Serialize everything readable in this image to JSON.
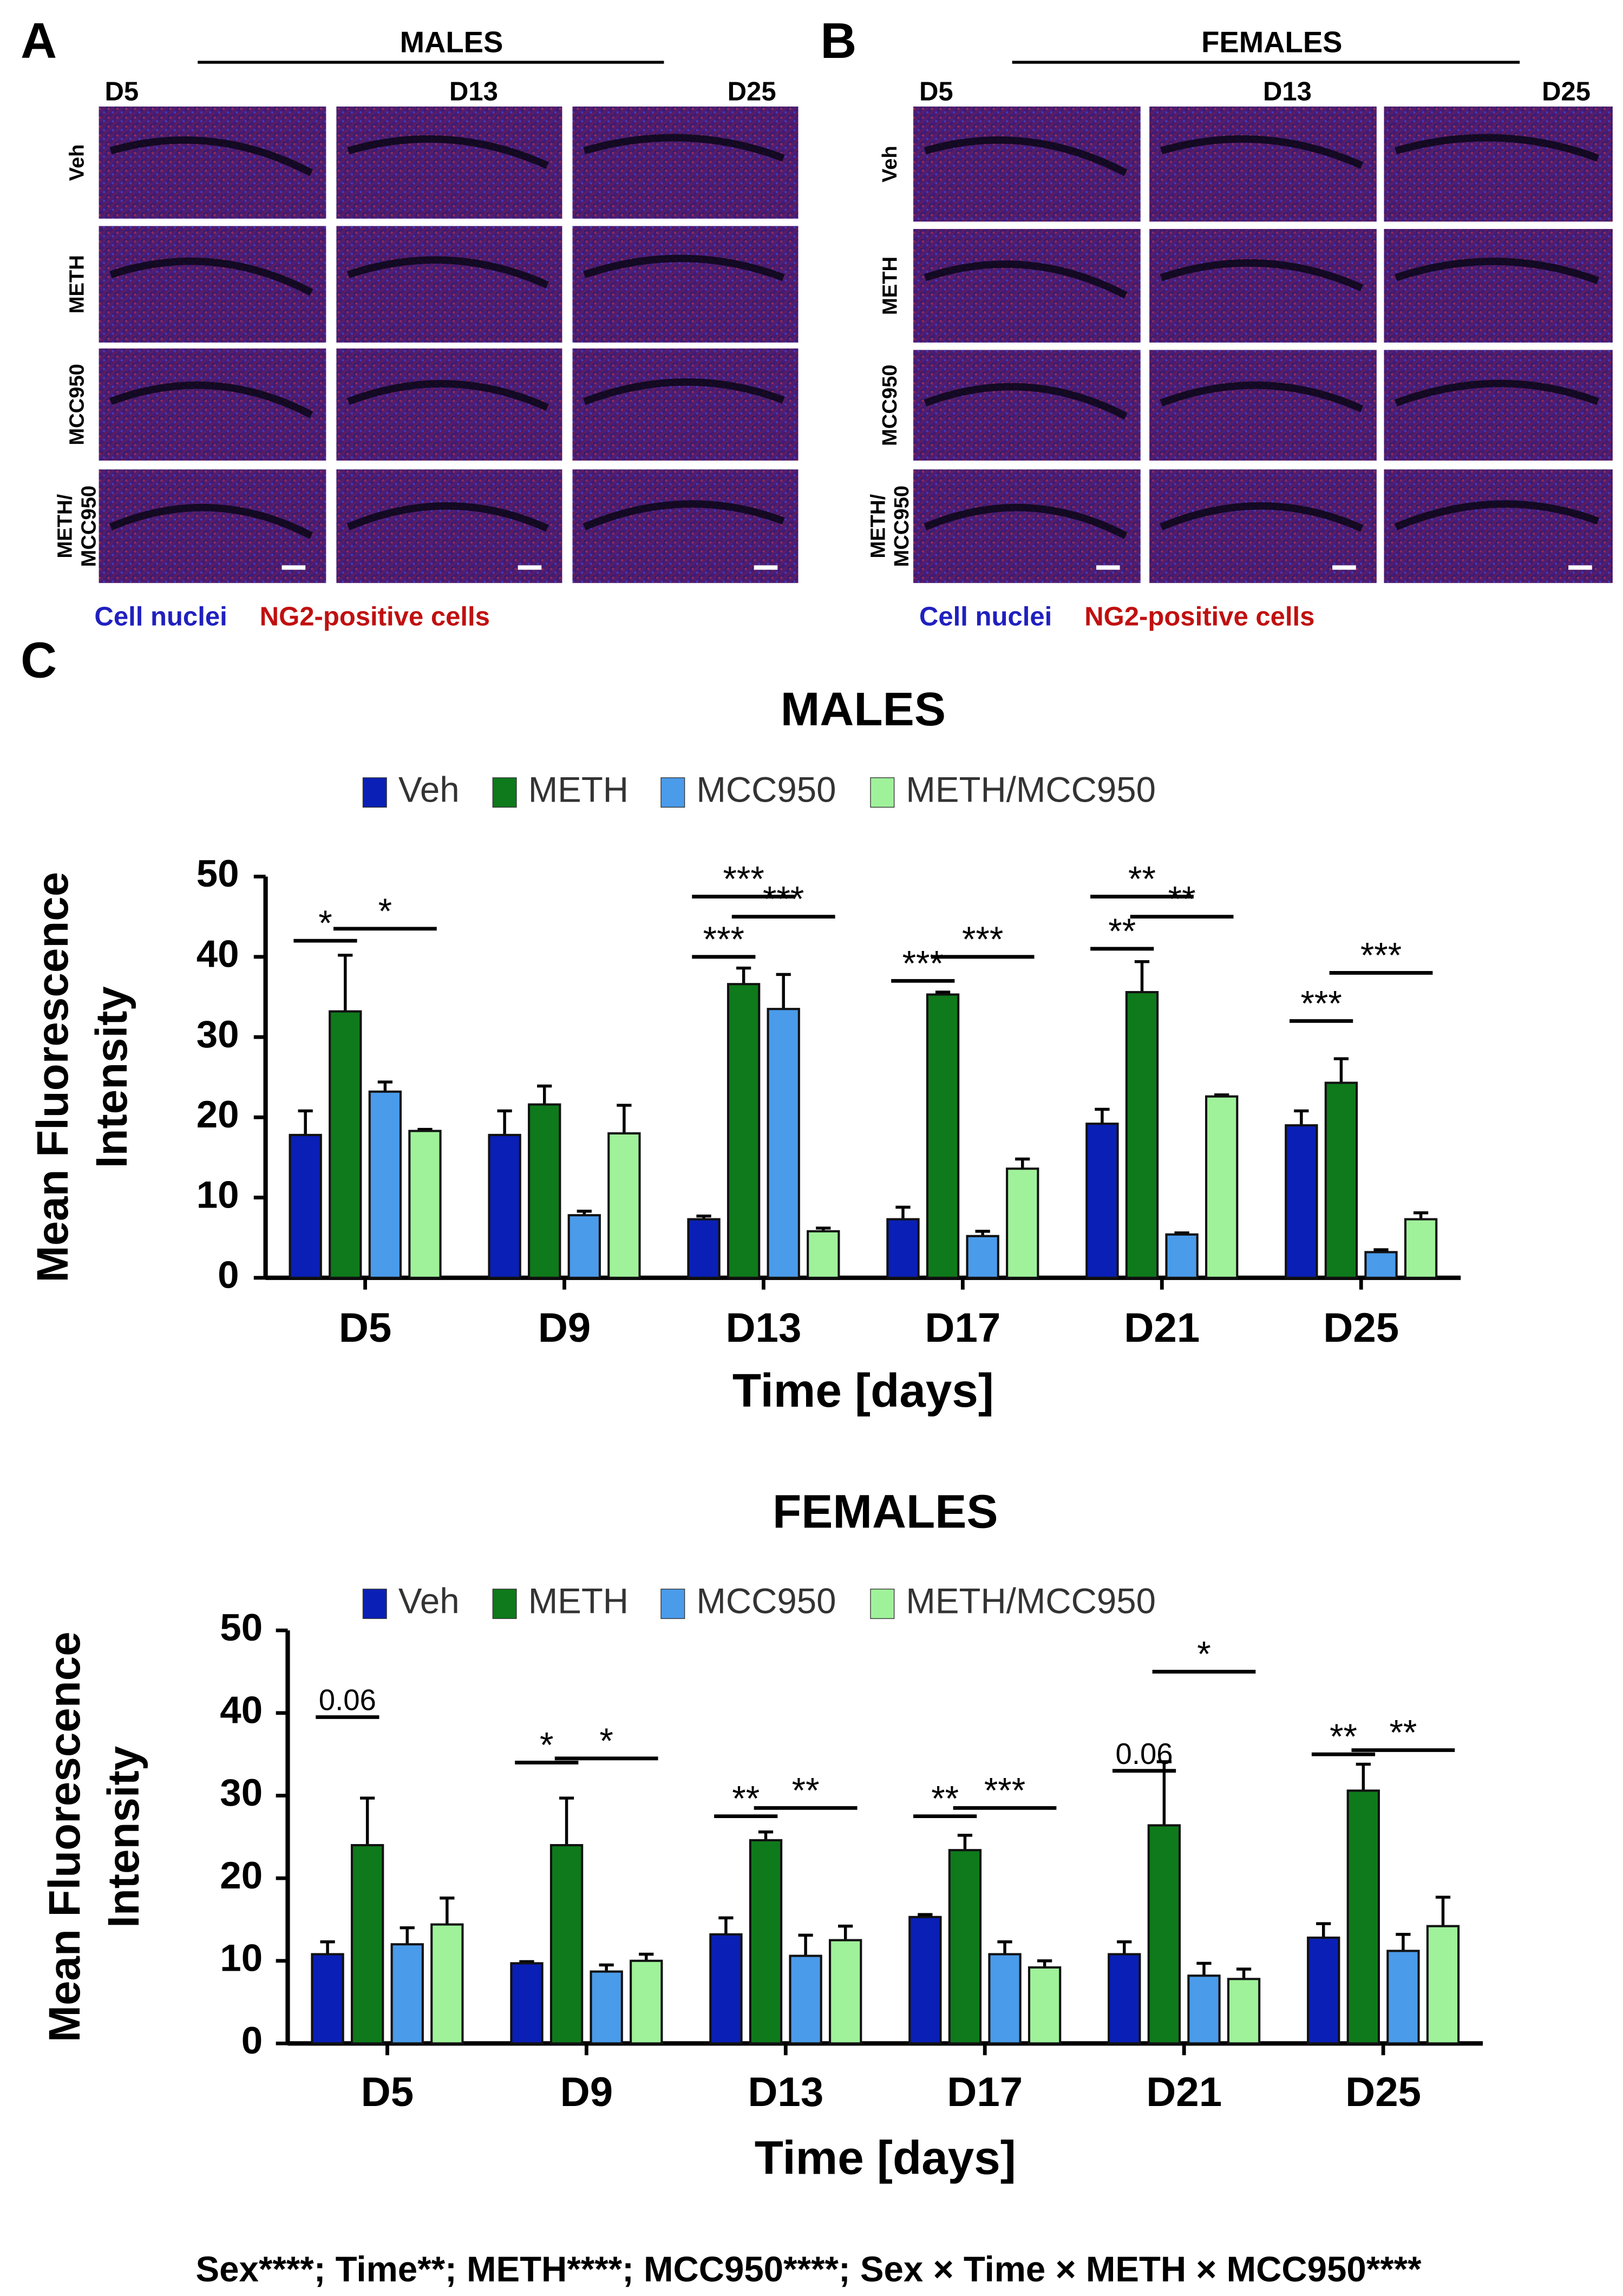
{
  "micrographs": [
    {
      "letter": "A",
      "group": "MALES",
      "columns": [
        "D5",
        "D13",
        "D25"
      ],
      "rows": [
        [
          "Veh"
        ],
        [
          "METH"
        ],
        [
          "MCC950"
        ],
        [
          "METH/",
          "MCC950"
        ]
      ],
      "legend": [
        "Cell nuclei",
        "NG2-positive cells"
      ]
    },
    {
      "letter": "B",
      "group": "FEMALES",
      "columns": [
        "D5",
        "D13",
        "D25"
      ],
      "rows": [
        [
          "Veh"
        ],
        [
          "METH"
        ],
        [
          "MCC950"
        ],
        [
          "METH/",
          "MCC950"
        ]
      ],
      "legend": [
        "Cell nuclei",
        "NG2-positive cells"
      ]
    }
  ],
  "panel_c": "C",
  "chart_data": [
    {
      "type": "bar",
      "title": "MALES",
      "x_label": "Time [days]",
      "y_label": [
        "Mean Fluorescence",
        "Intensity"
      ],
      "categories": [
        "D5",
        "D9",
        "D13",
        "D17",
        "D21",
        "D25"
      ],
      "ylim": [
        0,
        50
      ],
      "yticks": [
        0,
        10,
        20,
        30,
        40,
        50
      ],
      "series": [
        {
          "name": "Veh",
          "color": "#0a1fb5",
          "values": [
            17.8,
            17.8,
            7.3,
            7.3,
            19.2,
            19.0
          ],
          "errors": [
            3.0,
            3.0,
            0.4,
            1.5,
            1.8,
            1.8
          ]
        },
        {
          "name": "METH",
          "color": "#0e7a1b",
          "values": [
            33.2,
            21.6,
            36.6,
            35.3,
            35.6,
            24.3
          ],
          "errors": [
            7.0,
            2.3,
            2.0,
            0.3,
            3.8,
            3.0
          ]
        },
        {
          "name": "MCC950",
          "color": "#4a9bea",
          "values": [
            23.2,
            7.8,
            33.5,
            5.2,
            5.4,
            3.2
          ],
          "errors": [
            1.2,
            0.5,
            4.3,
            0.6,
            0.2,
            0.3
          ]
        },
        {
          "name": "METH/MCC950",
          "color": "#9ff29a",
          "values": [
            18.3,
            18.0,
            5.8,
            13.6,
            22.6,
            7.3
          ],
          "errors": [
            0.2,
            3.5,
            0.4,
            1.2,
            0.2,
            0.8
          ]
        }
      ],
      "annotations": [
        {
          "text": "*",
          "y": 42,
          "category": 0,
          "series": [
            0,
            1
          ]
        },
        {
          "text": "*",
          "y": 43.5,
          "category": 0,
          "series": [
            1,
            3
          ]
        },
        {
          "text": "***",
          "y": 47.5,
          "category": 2,
          "series": [
            0,
            2
          ]
        },
        {
          "text": "***",
          "y": 45,
          "category": 2,
          "series": [
            1,
            3
          ]
        },
        {
          "text": "***",
          "y": 40,
          "category": 2,
          "series": [
            0,
            1
          ]
        },
        {
          "text": "***",
          "y": 37,
          "category": 3,
          "series": [
            0,
            1
          ]
        },
        {
          "text": "***",
          "y": 40,
          "category": 3,
          "series": [
            1,
            3
          ]
        },
        {
          "text": "**",
          "y": 47.5,
          "category": 4,
          "series": [
            0,
            2
          ]
        },
        {
          "text": "**",
          "y": 45,
          "category": 4,
          "series": [
            1,
            3
          ]
        },
        {
          "text": "**",
          "y": 41,
          "category": 4,
          "series": [
            0,
            1
          ]
        },
        {
          "text": "***",
          "y": 32,
          "category": 5,
          "series": [
            0,
            1
          ]
        },
        {
          "text": "***",
          "y": 38,
          "category": 5,
          "series": [
            1,
            3
          ]
        }
      ]
    },
    {
      "type": "bar",
      "title": "FEMALES",
      "x_label": "Time [days]",
      "y_label": [
        "Mean Fluorescence",
        "Intensity"
      ],
      "categories": [
        "D5",
        "D9",
        "D13",
        "D17",
        "D21",
        "D25"
      ],
      "ylim": [
        0,
        50
      ],
      "yticks": [
        0,
        10,
        20,
        30,
        40,
        50
      ],
      "series": [
        {
          "name": "Veh",
          "color": "#0a1fb5",
          "values": [
            10.8,
            9.7,
            13.2,
            15.3,
            10.8,
            12.8
          ],
          "errors": [
            1.5,
            0.2,
            2.0,
            0.3,
            1.5,
            1.7
          ]
        },
        {
          "name": "METH",
          "color": "#0e7a1b",
          "values": [
            24.0,
            24.0,
            24.6,
            23.4,
            26.4,
            30.6
          ],
          "errors": [
            5.7,
            5.7,
            1.0,
            1.8,
            7.7,
            3.2
          ]
        },
        {
          "name": "MCC950",
          "color": "#4a9bea",
          "values": [
            12.0,
            8.7,
            10.6,
            10.8,
            8.2,
            11.2
          ],
          "errors": [
            2.0,
            0.8,
            2.5,
            1.5,
            1.5,
            2.0
          ]
        },
        {
          "name": "METH/MCC950",
          "color": "#9ff29a",
          "values": [
            14.4,
            10.0,
            12.5,
            9.2,
            7.8,
            14.2
          ],
          "errors": [
            3.2,
            0.8,
            1.7,
            0.8,
            1.2,
            3.5
          ]
        }
      ],
      "annotations": [
        {
          "text": "0.06",
          "y": 39.5,
          "category": 0,
          "series": [
            0,
            1
          ]
        },
        {
          "text": "*",
          "y": 34,
          "category": 1,
          "series": [
            0,
            1
          ]
        },
        {
          "text": "*",
          "y": 34.5,
          "category": 1,
          "series": [
            1,
            3
          ]
        },
        {
          "text": "**",
          "y": 27.5,
          "category": 2,
          "series": [
            0,
            1
          ]
        },
        {
          "text": "**",
          "y": 28.5,
          "category": 2,
          "series": [
            1,
            3
          ]
        },
        {
          "text": "**",
          "y": 27.5,
          "category": 3,
          "series": [
            0,
            1
          ]
        },
        {
          "text": "***",
          "y": 28.5,
          "category": 3,
          "series": [
            1,
            3
          ]
        },
        {
          "text": "0.06",
          "y": 33,
          "category": 4,
          "series": [
            0,
            1
          ]
        },
        {
          "text": "*",
          "y": 45,
          "category": 4,
          "series": [
            1,
            3
          ]
        },
        {
          "text": "**",
          "y": 35,
          "category": 5,
          "series": [
            0,
            1
          ]
        },
        {
          "text": "**",
          "y": 35.5,
          "category": 5,
          "series": [
            1,
            3
          ]
        }
      ]
    }
  ],
  "footnote": "Sex****; Time**; METH****; MCC950****; Sex × Time × METH × MCC950****"
}
